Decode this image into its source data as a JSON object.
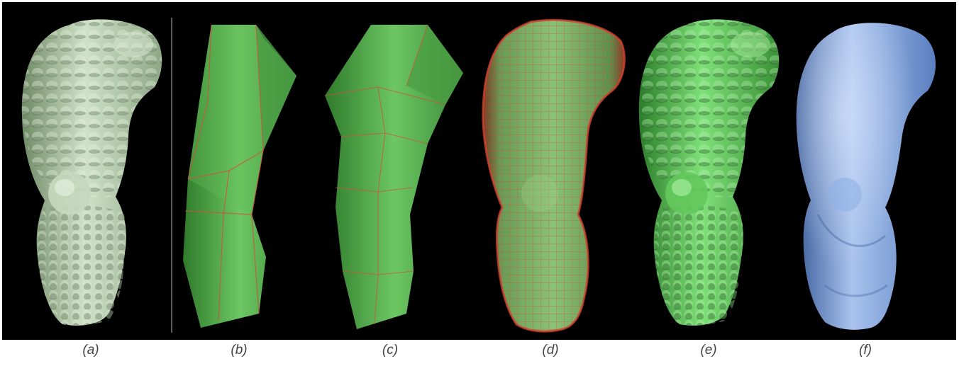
{
  "figure": {
    "background": "#000000",
    "panels": [
      {
        "id": "a",
        "caption": "(a)",
        "render": "detailed-scan",
        "color": "#b9cfb0"
      },
      {
        "id": "b",
        "caption": "(b)",
        "render": "coarse-control-mesh",
        "color": "#56b04e",
        "edge_color": "#d0513b"
      },
      {
        "id": "c",
        "caption": "(c)",
        "render": "subdivided-control-mesh",
        "color": "#5bb553",
        "edge_color": "#d0513b"
      },
      {
        "id": "d",
        "caption": "(d)",
        "render": "dense-quad-mesh",
        "color": "#6aa85a",
        "edge_color": "#d4432f"
      },
      {
        "id": "e",
        "caption": "(e)",
        "render": "detailed-reconstruction",
        "color": "#5fc45a"
      },
      {
        "id": "f",
        "caption": "(f)",
        "render": "smooth-surface",
        "color": "#7c9fd8"
      }
    ]
  }
}
